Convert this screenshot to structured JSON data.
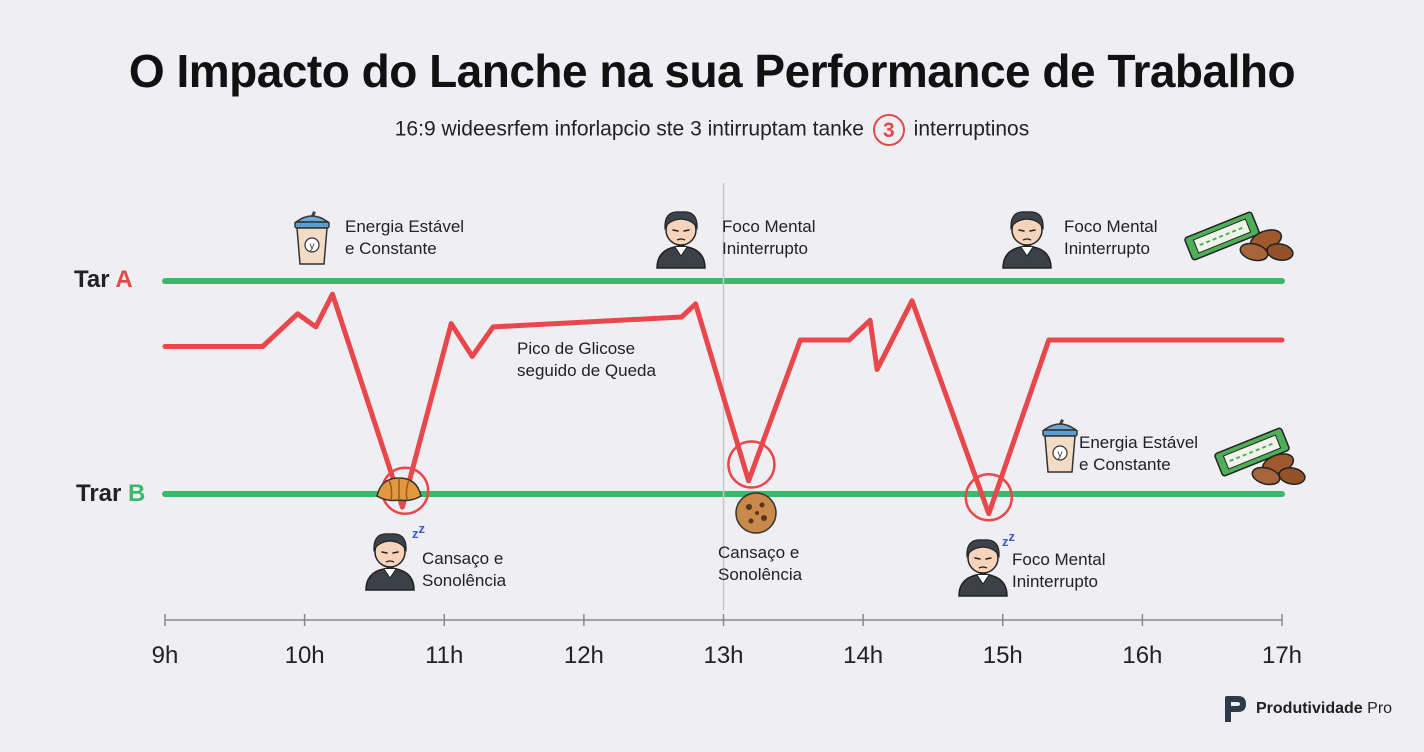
{
  "title": "O Impacto do Lanche na sua Performance de Trabalho",
  "subtitle_before": "16:9 wideesrfem inforlapcio ste 3 intirruptam tanke",
  "subtitle_badge": "3",
  "subtitle_after": "interruptinos",
  "brand": {
    "name": "Produtividade",
    "suffix": "Pro"
  },
  "chart_data": {
    "type": "line",
    "xlabel": "",
    "ylabel": "",
    "x_ticks": [
      "9h",
      "10h",
      "11h",
      "12h",
      "13h",
      "14h",
      "15h",
      "16h",
      "17h"
    ],
    "xlim": [
      9,
      17
    ],
    "ylim": [
      0,
      100
    ],
    "grid": false,
    "reference_lines": [
      {
        "label_prefix": "Tar",
        "label_suffix": "A",
        "y": 95,
        "color": "#3bb86a"
      },
      {
        "label_prefix": "Trar",
        "label_suffix": "B",
        "y": 30,
        "color": "#3bb86a"
      }
    ],
    "vertical_marker": {
      "x": 13
    },
    "series": [
      {
        "color": "#e8474c",
        "points": [
          [
            9,
            75
          ],
          [
            9.7,
            75
          ],
          [
            9.95,
            85
          ],
          [
            10.08,
            81
          ],
          [
            10.2,
            91
          ],
          [
            10.7,
            26
          ],
          [
            11.05,
            82
          ],
          [
            11.2,
            72
          ],
          [
            11.35,
            81
          ],
          [
            12.7,
            84
          ],
          [
            12.8,
            88
          ],
          [
            13.18,
            34
          ],
          [
            13.55,
            77
          ],
          [
            13.9,
            77
          ],
          [
            14.05,
            83
          ],
          [
            14.1,
            68
          ],
          [
            14.35,
            89
          ],
          [
            14.9,
            24
          ],
          [
            15.33,
            77
          ],
          [
            17,
            77
          ]
        ]
      }
    ],
    "dip_markers": [
      {
        "x": 10.72,
        "y": 31
      },
      {
        "x": 13.2,
        "y": 39
      },
      {
        "x": 14.9,
        "y": 29
      }
    ],
    "annotations": [
      {
        "lines": [
          "Energia Estável",
          "e Constante"
        ],
        "icon": "shake-cup-icon"
      },
      {
        "lines": [
          "Foco Mental",
          "Ininterrupto"
        ],
        "icon": "worker-focused-icon"
      },
      {
        "lines": [
          "Foco Mental",
          "Ininterrupto"
        ],
        "icon": "worker-happy-icon"
      },
      {
        "lines": [
          "Pico de Glicose",
          "seguido de Queda"
        ],
        "icon": ""
      },
      {
        "lines": [
          "Energia Estável",
          "e Constante"
        ],
        "icon": "shake-cup-icon"
      },
      {
        "lines": [
          "Cansaço e",
          "Sonolência"
        ],
        "icon": "worker-sleepy-icon"
      },
      {
        "lines": [
          "Cansaço e",
          "Sonolência"
        ],
        "icon": "cookie-icon"
      },
      {
        "lines": [
          "Foco Mental",
          "Ininterrupto"
        ],
        "icon": "worker-sleepy-icon"
      }
    ],
    "food_icons": [
      "croissant-icon",
      "cookie-icon",
      "granola-bar-icon",
      "almonds-icon"
    ]
  }
}
